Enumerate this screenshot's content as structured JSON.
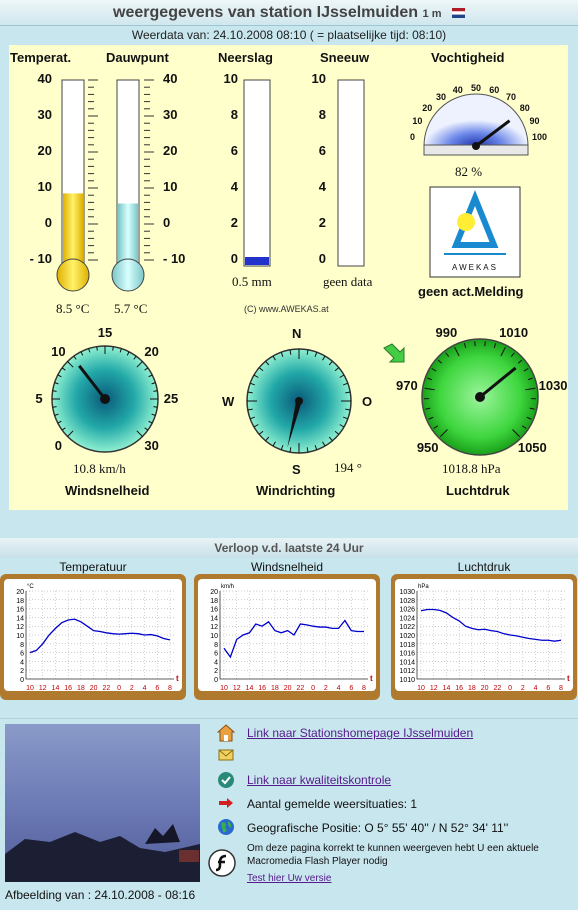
{
  "header": {
    "title": "weergegevens van station IJsselmuiden",
    "altitude": "1 m",
    "flag": "nl-flag"
  },
  "subheader": "Weerdata van: 24.10.2008 08:10 ( = plaatselijke tijd: 08:10)",
  "gauges": {
    "temperature": {
      "label": "Temperat.",
      "value": "8.5 °C",
      "level": 8.5,
      "ticks": [
        "40",
        "30",
        "20",
        "10",
        "0",
        "- 10"
      ]
    },
    "dewpoint": {
      "label": "Dauwpunt",
      "value": "5.7 °C",
      "level": 5.7,
      "ticks": [
        "40",
        "30",
        "20",
        "10",
        "0",
        "- 10"
      ]
    },
    "precipitation": {
      "label": "Neerslag",
      "value": "0.5 mm",
      "level": 0.5,
      "ticks": [
        "10",
        "8",
        "6",
        "4",
        "2",
        "0"
      ]
    },
    "snow": {
      "label": "Sneeuw",
      "value": "geen data",
      "ticks": [
        "10",
        "8",
        "6",
        "4",
        "2",
        "0"
      ]
    },
    "humidity": {
      "label": "Vochtigheid",
      "value": "82 %",
      "level": 82,
      "ticks": [
        "0",
        "10",
        "20",
        "30",
        "40",
        "50",
        "60",
        "70",
        "80",
        "90",
        "100"
      ]
    },
    "warning": {
      "label": "geen act.Melding",
      "logo_text": "AWEKAS"
    },
    "copyright": "(C) www.AWEKAS.at",
    "windspeed": {
      "label": "Windsnelheid",
      "value": "10.8 km/h",
      "level": 10.8,
      "ticks": [
        "0",
        "5",
        "10",
        "15",
        "20",
        "25",
        "30"
      ]
    },
    "winddir": {
      "label": "Windrichting",
      "value": "194 °",
      "level": 194,
      "n": "N",
      "s": "S",
      "w": "W",
      "o": "O"
    },
    "pressure": {
      "label": "Luchtdruk",
      "value": "1018.8 hPa",
      "level": 1018.8,
      "ticks": [
        "950",
        "970",
        "990",
        "1010",
        "1030",
        "1050"
      ],
      "trend_icon": "arrow-down-right-icon"
    }
  },
  "trends": {
    "title": "Verloop v.d. laatste 24 Uur",
    "x_ticks": [
      "10",
      "12",
      "14",
      "16",
      "18",
      "20",
      "22",
      "0",
      "2",
      "4",
      "6",
      "8"
    ],
    "x_unit": "t",
    "charts": [
      {
        "title": "Temperatuur",
        "unit": "°C",
        "y_ticks": [
          "20",
          "18",
          "16",
          "14",
          "12",
          "10",
          "8",
          "6",
          "4",
          "2",
          "0"
        ]
      },
      {
        "title": "Windsnelheid",
        "unit": "km/h",
        "y_ticks": [
          "20",
          "18",
          "16",
          "14",
          "12",
          "10",
          "8",
          "6",
          "4",
          "2",
          "0"
        ]
      },
      {
        "title": "Luchtdruk",
        "unit": "hPa",
        "y_ticks": [
          "1030",
          "1028",
          "1026",
          "1024",
          "1022",
          "1020",
          "1018",
          "1016",
          "1014",
          "1012",
          "1010"
        ]
      }
    ]
  },
  "chart_data": [
    {
      "type": "line",
      "title": "Temperatuur",
      "ylabel": "°C",
      "ylim": [
        0,
        20
      ],
      "x": [
        "10",
        "11",
        "12",
        "13",
        "14",
        "15",
        "16",
        "17",
        "18",
        "19",
        "20",
        "21",
        "22",
        "23",
        "0",
        "1",
        "2",
        "3",
        "4",
        "5",
        "6",
        "7",
        "8"
      ],
      "series": [
        {
          "values": [
            6,
            6.5,
            8,
            10,
            11.5,
            12.8,
            13.4,
            13.6,
            13,
            12,
            11,
            10.8,
            10.5,
            10.3,
            10.2,
            10.3,
            10.4,
            10.3,
            10,
            10.1,
            9.8,
            9.2,
            8.9
          ]
        }
      ]
    },
    {
      "type": "line",
      "title": "Windsnelheid",
      "ylabel": "km/h",
      "ylim": [
        0,
        20
      ],
      "x": [
        "10",
        "11",
        "12",
        "13",
        "14",
        "15",
        "16",
        "17",
        "18",
        "19",
        "20",
        "21",
        "22",
        "23",
        "0",
        "1",
        "2",
        "3",
        "4",
        "5",
        "6",
        "7",
        "8"
      ],
      "series": [
        {
          "values": [
            7,
            5,
            9,
            10,
            10.5,
            12.5,
            12,
            13,
            11,
            10.5,
            11,
            10,
            12.5,
            12.3,
            12,
            11.8,
            11.8,
            11.5,
            11.5,
            13.3,
            11,
            10.8,
            10.8
          ]
        }
      ]
    },
    {
      "type": "line",
      "title": "Luchtdruk",
      "ylabel": "hPa",
      "ylim": [
        1010,
        1030
      ],
      "x": [
        "10",
        "11",
        "12",
        "13",
        "14",
        "15",
        "16",
        "17",
        "18",
        "19",
        "20",
        "21",
        "22",
        "23",
        "0",
        "1",
        "2",
        "3",
        "4",
        "5",
        "6",
        "7",
        "8"
      ],
      "series": [
        {
          "values": [
            1025.5,
            1025.8,
            1025.8,
            1025.6,
            1025,
            1024,
            1023.2,
            1022,
            1021.5,
            1021.2,
            1021.3,
            1021,
            1020.8,
            1020.3,
            1020,
            1019.8,
            1019.5,
            1019.2,
            1019,
            1018.8,
            1018.8,
            1018.6,
            1018.8
          ]
        }
      ]
    }
  ],
  "footer": {
    "webcam_caption": "Afbeelding van : 24.10.2008 - 08:16",
    "links": [
      {
        "icon": "home-icon",
        "text": "Link naar Stationshomepage IJsselmuiden"
      },
      {
        "icon": "mail-icon",
        "text": ""
      },
      {
        "icon": "check-icon",
        "text": "Link naar kwaliteitskontrole"
      },
      {
        "icon": "arrow-right-icon",
        "text": "Aantal gemelde weersituaties: 1"
      },
      {
        "icon": "globe-icon",
        "text": "Geografische Positie: O 5° 55' 40'' / N 52° 34' 11''"
      }
    ],
    "flash_note": "Om deze pagina korrekt te kunnen weergeven hebt U een aktuele Macromedia Flash Player nodig",
    "flash_link": "Test hier Uw versie",
    "flash_icon": "flash-icon"
  },
  "colors": {
    "panel": "#ffffcc",
    "background": "#c8e6ee",
    "chart_line": "#0000cc",
    "chart_frame": "#b07a2e"
  }
}
